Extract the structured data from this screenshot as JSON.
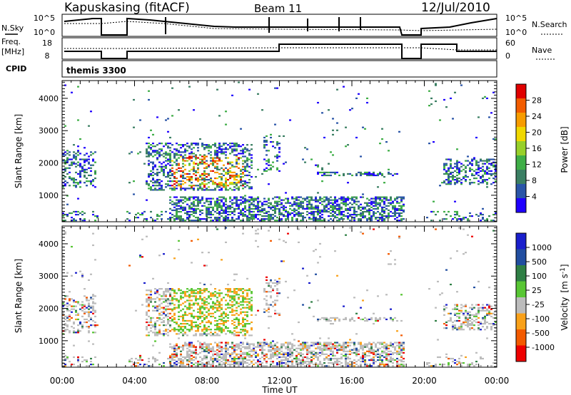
{
  "header": {
    "station": "Kapuskasing (fitACF)",
    "beam": "Beam 11",
    "date": "12/Jul/2010"
  },
  "panels": {
    "nsky_label": "N.Sky",
    "nsearch_label": "N.Search",
    "noise_ticks": [
      "10^5",
      "10^0"
    ],
    "freq_label_1": "Freq.",
    "freq_label_2": "[MHz]",
    "freq_ticks": [
      "18",
      "8"
    ],
    "nave_label": "Nave",
    "nave_ticks": [
      "60",
      "0"
    ],
    "cpid_label": "CPID",
    "cpid_value": "themis 3300"
  },
  "colors": {
    "power": [
      "#1f00ff",
      "#2a55a8",
      "#3b7f63",
      "#3fae47",
      "#98d02a",
      "#f0d800",
      "#f79c00",
      "#f25c00",
      "#e00000"
    ],
    "velocity": [
      "#ee0000",
      "#f35a00",
      "#f9a11a",
      "#bcbcbc",
      "#58c634",
      "#2f7f45",
      "#214ea0",
      "#1a1fcc"
    ]
  },
  "chart_data": [
    {
      "type": "heatmap",
      "quantity": "Power",
      "ylabel": "Slant Range [km]",
      "ylim": [
        180,
        4550
      ],
      "xlim": [
        0,
        24
      ],
      "yticks": [
        "1000",
        "2000",
        "3000",
        "4000"
      ],
      "xticks": [
        "00:00",
        "04:00",
        "08:00",
        "12:00",
        "16:00",
        "20:00",
        "00:00"
      ],
      "colorbar_label": "Power [dB]",
      "colorbar_ticks": [
        "28",
        "24",
        "20",
        "16",
        "12",
        "8",
        "4"
      ],
      "data_gaps_hours": [
        [
          2.0,
          3.5
        ],
        [
          18.8,
          20.0
        ]
      ]
    },
    {
      "type": "heatmap",
      "quantity": "Velocity",
      "ylabel": "Slant Range [km]",
      "xlabel": "Time UT",
      "ylim": [
        180,
        4550
      ],
      "xlim": [
        0,
        24
      ],
      "yticks": [
        "1000",
        "2000",
        "3000",
        "4000"
      ],
      "xticks": [
        "00:00",
        "04:00",
        "08:00",
        "12:00",
        "16:00",
        "20:00",
        "00:00"
      ],
      "colorbar_label": "Velocity",
      "colorbar_unit": "[m s",
      "colorbar_unit_exp": "-1",
      "colorbar_unit_end": "]",
      "colorbar_ticks": [
        "1000",
        "500",
        "100",
        "25",
        "-25",
        "-100",
        "-500",
        "-1000"
      ],
      "data_gaps_hours": [
        [
          2.0,
          3.5
        ],
        [
          18.8,
          20.0
        ]
      ]
    }
  ]
}
